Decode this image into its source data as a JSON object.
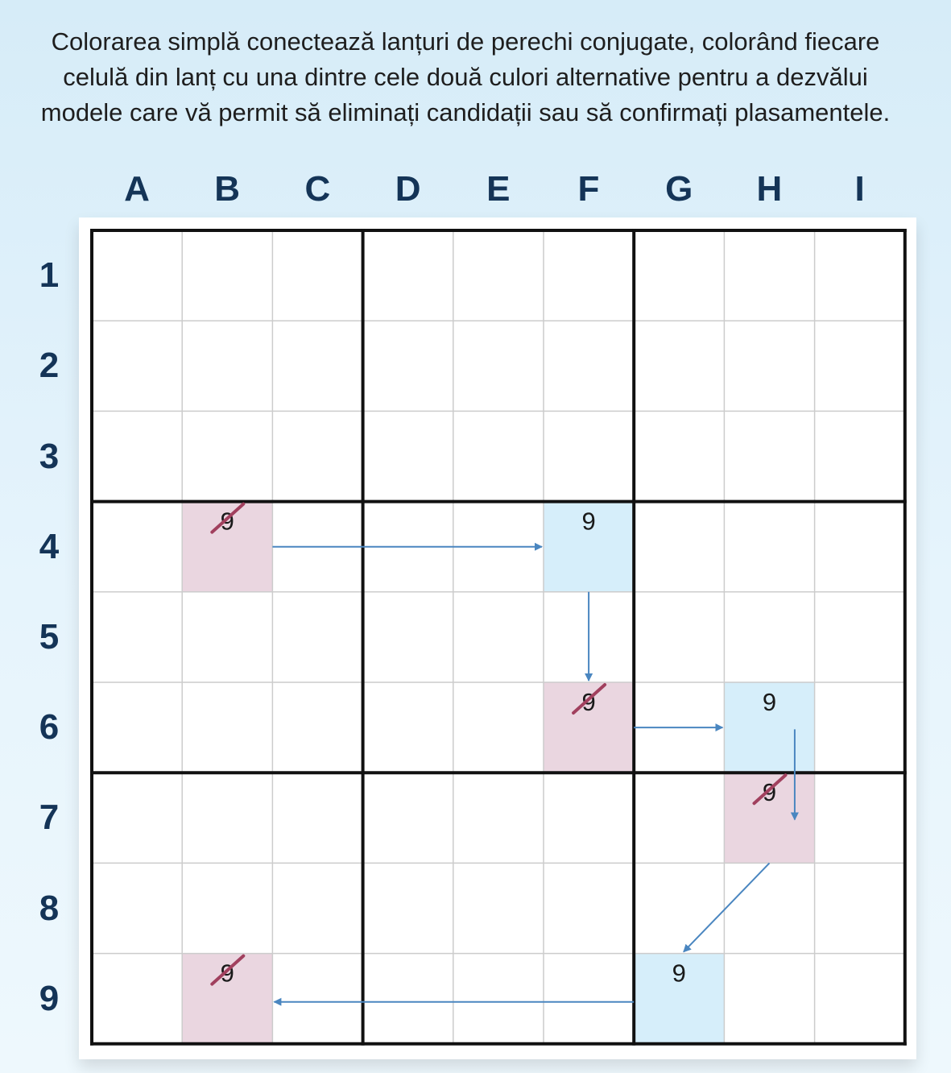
{
  "caption": "Colorarea simplă conectează lanțuri de perechi conjugate, colorând fiecare celulă din lanț cu una dintre cele două culori alternative pentru a dezvălui modele care vă permit să eliminați candidații sau să confirmați plasamentele.",
  "columns": [
    "A",
    "B",
    "C",
    "D",
    "E",
    "F",
    "G",
    "H",
    "I"
  ],
  "rows": [
    "1",
    "2",
    "3",
    "4",
    "5",
    "6",
    "7",
    "8",
    "9"
  ],
  "colors": {
    "pink": "#ead6e0",
    "blue": "#d6eefa",
    "arrow": "#4a86c0",
    "strike": "#a1405e",
    "thick_line": "#111111",
    "thin_line": "#cccccc",
    "label": "#143457"
  },
  "cells": [
    {
      "col": "B",
      "row": 4,
      "color": "pink",
      "digit": "9",
      "struck": true
    },
    {
      "col": "F",
      "row": 4,
      "color": "blue",
      "digit": "9",
      "struck": false
    },
    {
      "col": "F",
      "row": 6,
      "color": "pink",
      "digit": "9",
      "struck": true
    },
    {
      "col": "H",
      "row": 6,
      "color": "blue",
      "digit": "9",
      "struck": false
    },
    {
      "col": "H",
      "row": 7,
      "color": "pink",
      "digit": "9",
      "struck": true
    },
    {
      "col": "G",
      "row": 9,
      "color": "blue",
      "digit": "9",
      "struck": false
    },
    {
      "col": "B",
      "row": 9,
      "color": "pink",
      "digit": "9",
      "struck": true
    }
  ],
  "chain": [
    {
      "from": "B4",
      "to": "F4"
    },
    {
      "from": "F4",
      "to": "F6"
    },
    {
      "from": "F6",
      "to": "H6"
    },
    {
      "from": "H6",
      "to": "H7"
    },
    {
      "from": "H7",
      "to": "G9"
    },
    {
      "from": "G9",
      "to": "B9"
    }
  ]
}
